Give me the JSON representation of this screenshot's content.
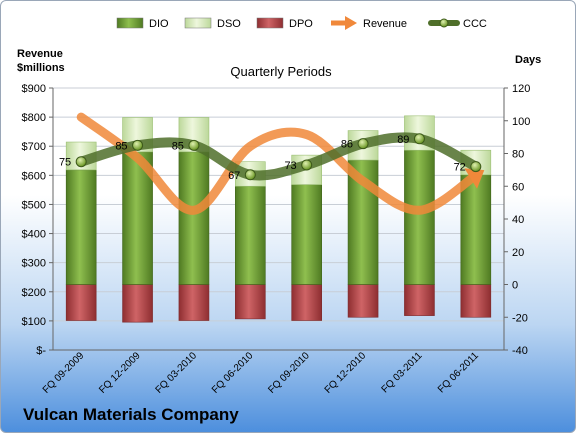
{
  "chart_data": {
    "type": "bar",
    "title": "Quarterly Periods",
    "footer": "Vulcan Materials Company",
    "y_left_label": [
      "Revenue",
      "$millions"
    ],
    "y_right_label": "Days",
    "y_left_range": [
      0,
      900
    ],
    "y_left_ticks": [
      "$-",
      "$100",
      "$200",
      "$300",
      "$400",
      "$500",
      "$600",
      "$700",
      "$800",
      "$900"
    ],
    "y_right_range": [
      -40,
      120
    ],
    "y_right_ticks": [
      "-40",
      "-20",
      "0",
      "20",
      "40",
      "60",
      "80",
      "100",
      "120"
    ],
    "categories": [
      "FQ 09-2009",
      "FQ 12-2009",
      "FQ 03-2010",
      "FQ 06-2010",
      "FQ 09-2010",
      "FQ 12-2010",
      "FQ 03-2011",
      "FQ 06-2011"
    ],
    "legend": [
      {
        "name": "DIO",
        "kind": "bar",
        "color": "#6a9a32"
      },
      {
        "name": "DSO",
        "kind": "bar",
        "color": "#d6ebb2"
      },
      {
        "name": "DPO",
        "kind": "bar",
        "color": "#b84a4d"
      },
      {
        "name": "Revenue",
        "kind": "arrow",
        "color": "#f0883a"
      },
      {
        "name": "CCC",
        "kind": "line",
        "color": "#4f6f2a"
      }
    ],
    "series": [
      {
        "name": "DIO",
        "axis": "days",
        "values": [
          70,
          81,
          81,
          60,
          61,
          76,
          82,
          67
        ]
      },
      {
        "name": "DSO",
        "axis": "days",
        "values": [
          17,
          21,
          21,
          15,
          18,
          18,
          21,
          15
        ]
      },
      {
        "name": "DPO",
        "axis": "days",
        "values": [
          -22,
          -23,
          -22,
          -21,
          -22,
          -20,
          -19,
          -20
        ]
      },
      {
        "name": "Revenue",
        "axis": "revenue",
        "values": [
          800,
          660,
          480,
          700,
          740,
          580,
          480,
          600
        ]
      },
      {
        "name": "CCC",
        "axis": "days",
        "values": [
          75,
          85,
          85,
          67,
          73,
          86,
          89,
          72
        ]
      }
    ],
    "data_labels": [
      "75",
      "85",
      "85",
      "67",
      "73",
      "86",
      "89",
      "72"
    ],
    "grid": true,
    "legend_position": "top"
  }
}
